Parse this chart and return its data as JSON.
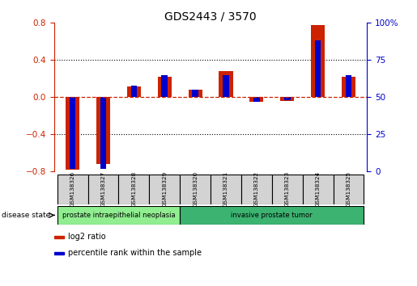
{
  "title": "GDS2443 / 3570",
  "samples": [
    "GSM138326",
    "GSM138327",
    "GSM138328",
    "GSM138329",
    "GSM138320",
    "GSM138321",
    "GSM138322",
    "GSM138323",
    "GSM138324",
    "GSM138325"
  ],
  "log2_ratio": [
    -0.78,
    -0.72,
    0.12,
    0.22,
    0.08,
    0.28,
    -0.05,
    -0.04,
    0.78,
    0.22
  ],
  "percentile_rank": [
    2.0,
    2.0,
    58.0,
    65.0,
    55.0,
    65.0,
    47.0,
    48.0,
    88.0,
    65.0
  ],
  "disease_groups": [
    {
      "label": "prostate intraepithelial neoplasia",
      "start": 0,
      "end": 4,
      "color": "#90ee90"
    },
    {
      "label": "invasive prostate tumor",
      "start": 4,
      "end": 10,
      "color": "#3cb371"
    }
  ],
  "bar_color_red": "#cc2200",
  "bar_color_blue": "#0000cc",
  "ylim_left": [
    -0.8,
    0.8
  ],
  "ylim_right": [
    0,
    100
  ],
  "yticks_left": [
    -0.8,
    -0.4,
    0.0,
    0.4,
    0.8
  ],
  "yticks_right": [
    0,
    25,
    50,
    75,
    100
  ],
  "bg_color": "#ffffff",
  "sample_box_color": "#d3d3d3",
  "disease_state_label": "disease state",
  "legend_items": [
    {
      "label": "log2 ratio",
      "color": "#cc2200"
    },
    {
      "label": "percentile rank within the sample",
      "color": "#0000cc"
    }
  ]
}
